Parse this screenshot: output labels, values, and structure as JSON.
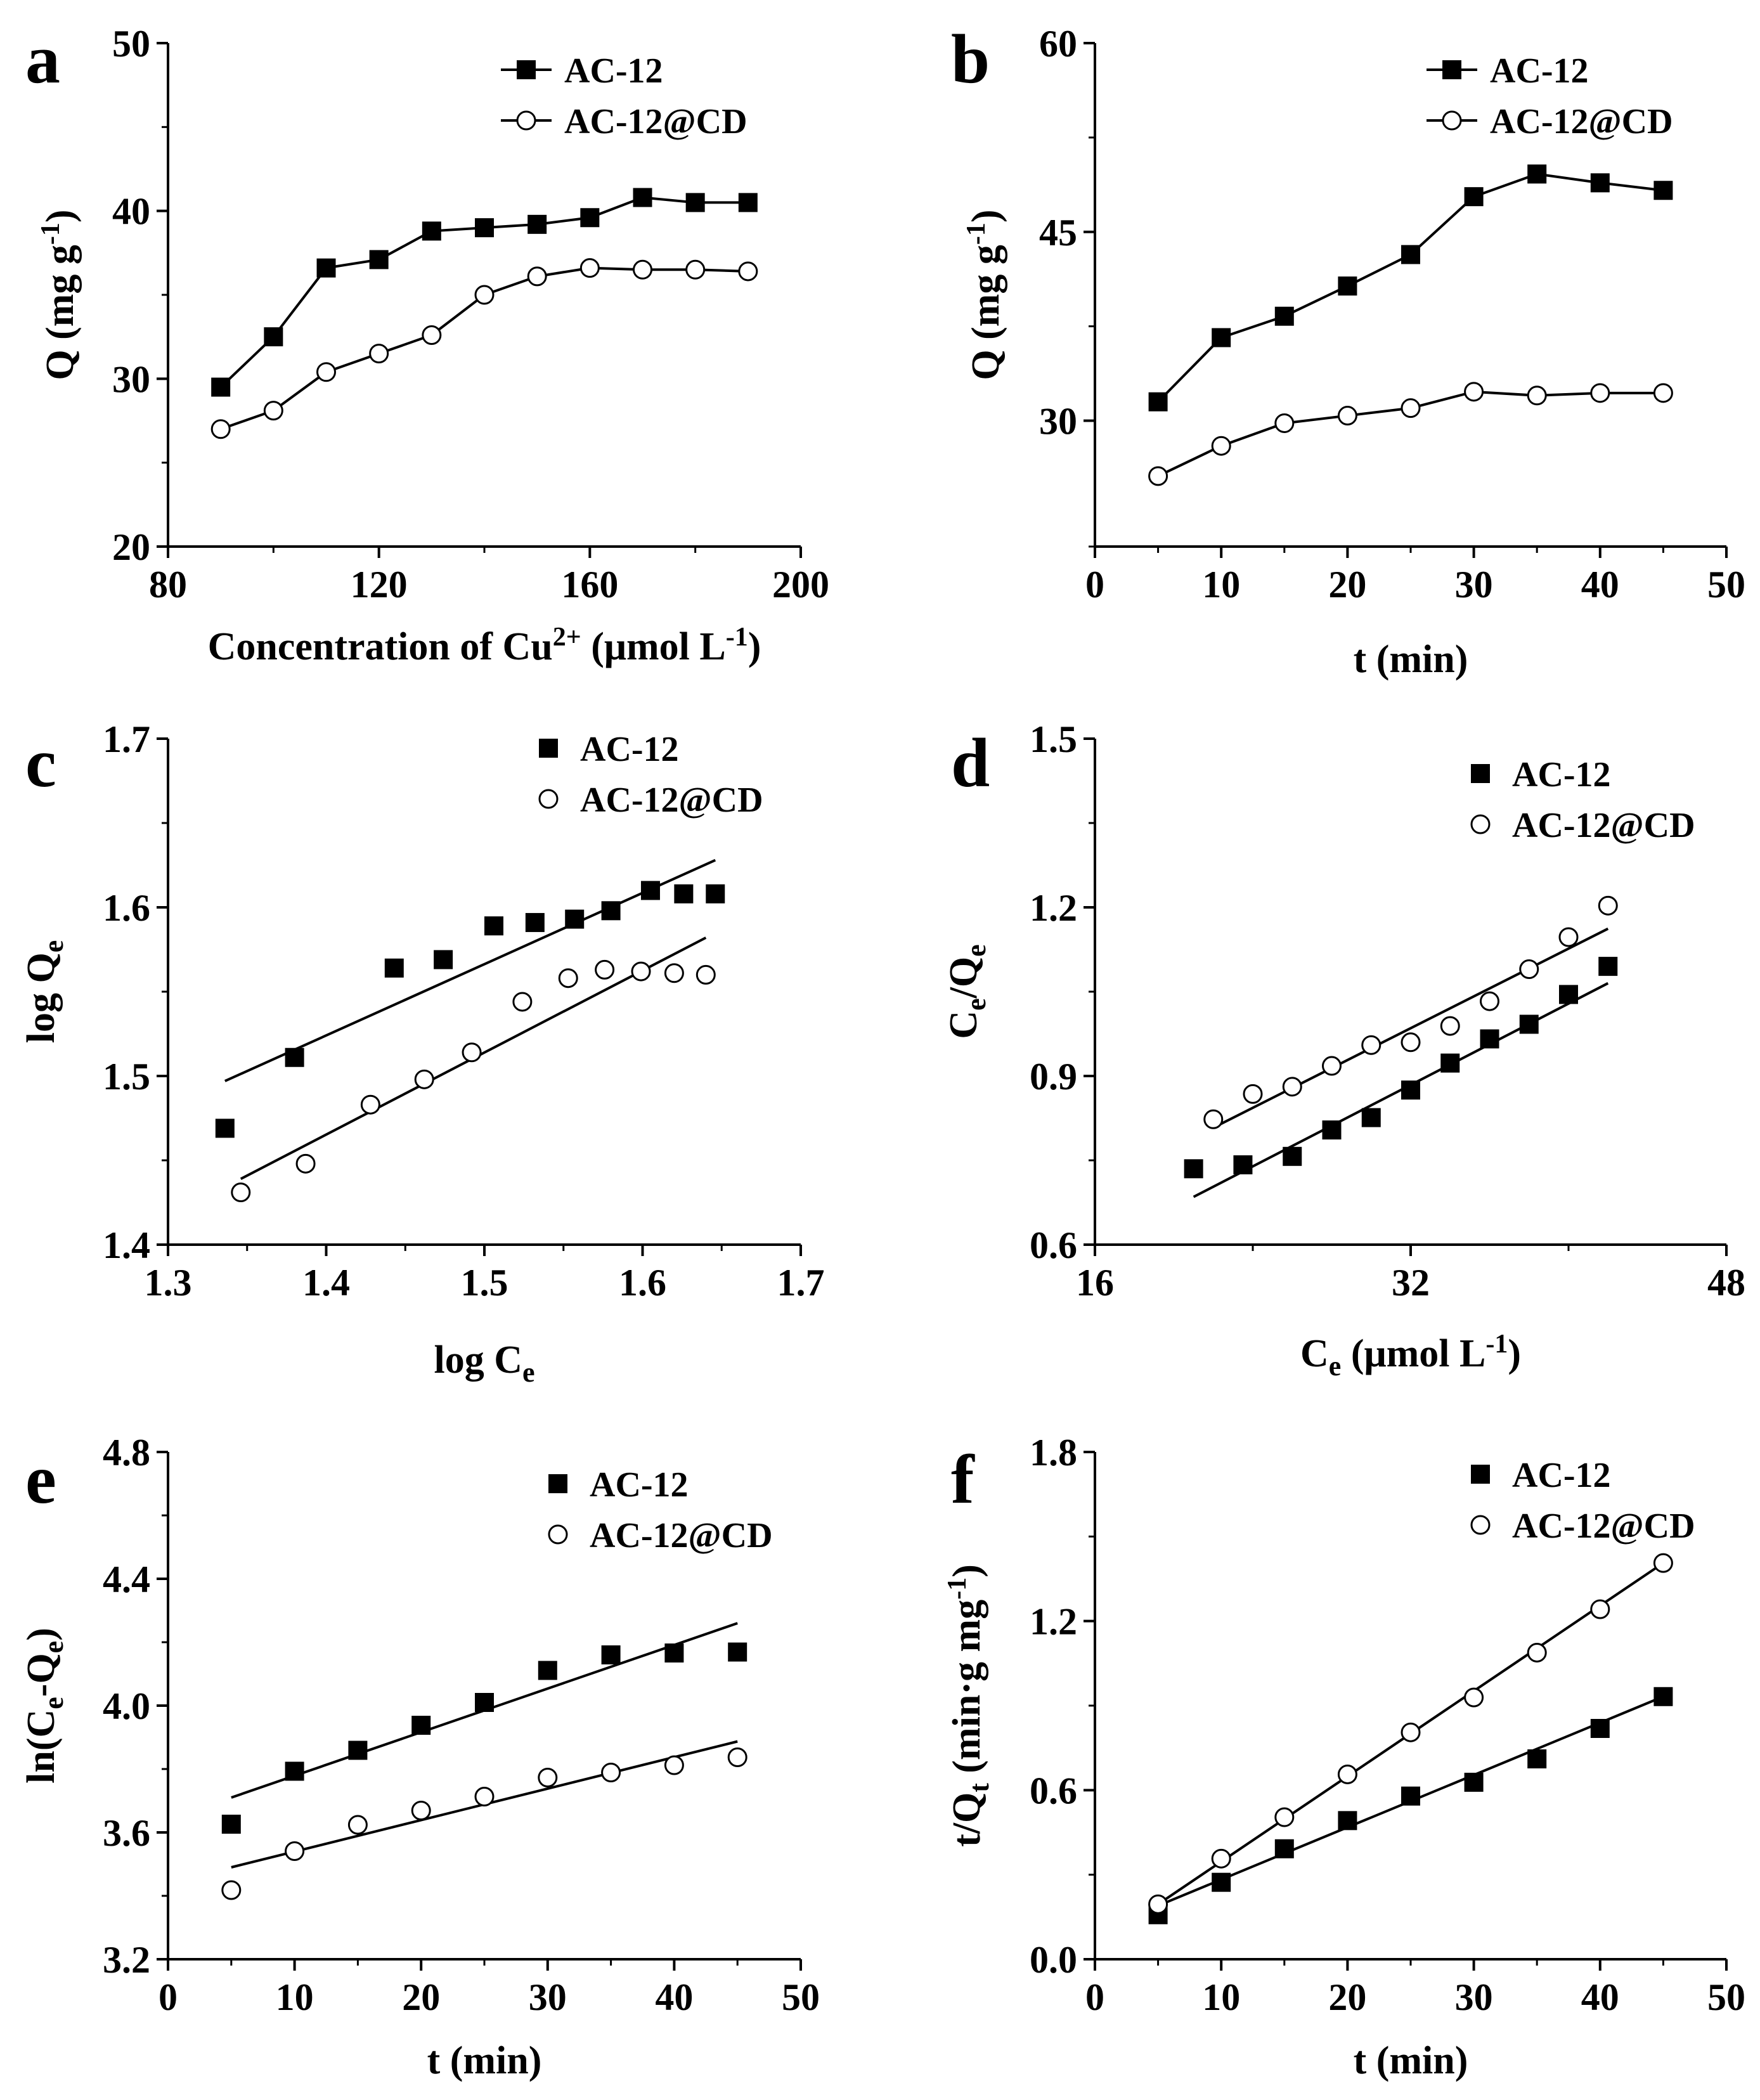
{
  "chart_data": [
    {
      "panel": "a",
      "type": "line",
      "xlabel": "Concentration of Cu2+ (μmol L-1)",
      "ylabel": "Q (mg g-1)",
      "xlim": [
        80,
        200
      ],
      "ylim": [
        20,
        50
      ],
      "xticks": [
        80,
        120,
        160,
        200
      ],
      "yticks": [
        20,
        30,
        40,
        50
      ],
      "legend_position": "top-right",
      "series": [
        {
          "name": "AC-12",
          "marker": "square",
          "x": [
            90,
            100,
            110,
            120,
            130,
            140,
            150,
            160,
            170,
            180,
            190
          ],
          "y": [
            29.5,
            32.5,
            36.6,
            37.1,
            38.8,
            39.0,
            39.2,
            39.6,
            40.8,
            40.5,
            40.5
          ]
        },
        {
          "name": "AC-12@CD",
          "marker": "circle",
          "x": [
            90,
            100,
            110,
            120,
            130,
            140,
            150,
            160,
            170,
            180,
            190
          ],
          "y": [
            27.0,
            28.1,
            30.4,
            31.5,
            32.6,
            35.0,
            36.1,
            36.6,
            36.5,
            36.5,
            36.4
          ]
        }
      ]
    },
    {
      "panel": "b",
      "type": "line",
      "xlabel": "t (min)",
      "ylabel": "Q (mg g-1)",
      "xlim": [
        0,
        50
      ],
      "ylim": [
        20,
        60
      ],
      "xticks": [
        0,
        10,
        20,
        30,
        40,
        50
      ],
      "yticks": [
        30,
        45,
        60
      ],
      "legend_position": "top-right",
      "series": [
        {
          "name": "AC-12",
          "marker": "square",
          "x": [
            5,
            10,
            15,
            20,
            25,
            30,
            35,
            40,
            45
          ],
          "y": [
            31.5,
            36.6,
            38.3,
            40.7,
            43.2,
            47.8,
            49.6,
            48.9,
            48.3
          ]
        },
        {
          "name": "AC-12@CD",
          "marker": "circle",
          "x": [
            5,
            10,
            15,
            20,
            25,
            30,
            35,
            40,
            45
          ],
          "y": [
            25.6,
            28.0,
            29.8,
            30.4,
            31.0,
            32.3,
            32.0,
            32.2,
            32.2
          ]
        }
      ]
    },
    {
      "panel": "c",
      "type": "scatter",
      "xlabel": "log Ce",
      "ylabel": "log Qe",
      "xlim": [
        1.3,
        1.7
      ],
      "ylim": [
        1.4,
        1.7
      ],
      "xticks": [
        1.3,
        1.4,
        1.5,
        1.6,
        1.7
      ],
      "yticks": [
        1.4,
        1.5,
        1.6,
        1.7
      ],
      "legend_position": "top-right",
      "series": [
        {
          "name": "AC-12",
          "marker": "square",
          "x": [
            1.336,
            1.38,
            1.443,
            1.474,
            1.506,
            1.532,
            1.557,
            1.58,
            1.605,
            1.626,
            1.646
          ],
          "y": [
            1.469,
            1.511,
            1.564,
            1.569,
            1.589,
            1.591,
            1.593,
            1.598,
            1.61,
            1.608,
            1.608
          ],
          "fit": [
            [
              1.336,
              1.497
            ],
            [
              1.646,
              1.628
            ]
          ]
        },
        {
          "name": "AC-12@CD",
          "marker": "circle",
          "x": [
            1.346,
            1.387,
            1.428,
            1.462,
            1.492,
            1.524,
            1.553,
            1.576,
            1.599,
            1.62,
            1.64
          ],
          "y": [
            1.431,
            1.448,
            1.483,
            1.498,
            1.514,
            1.544,
            1.558,
            1.563,
            1.562,
            1.561,
            1.56
          ],
          "fit": [
            [
              1.346,
              1.439
            ],
            [
              1.64,
              1.582
            ]
          ]
        }
      ]
    },
    {
      "panel": "d",
      "type": "scatter",
      "xlabel": "Ce (μmol L-1)",
      "ylabel": "Ce/Qe",
      "xlim": [
        16,
        48
      ],
      "ylim": [
        0.6,
        1.5
      ],
      "xticks": [
        16,
        32,
        48
      ],
      "yticks": [
        0.6,
        0.9,
        1.2,
        1.5
      ],
      "legend_position": "top-right",
      "series": [
        {
          "name": "AC-12",
          "marker": "square",
          "x": [
            21,
            23.5,
            26,
            28,
            30,
            32,
            34,
            36,
            38,
            40,
            42
          ],
          "y": [
            0.735,
            0.742,
            0.757,
            0.804,
            0.826,
            0.875,
            0.923,
            0.966,
            0.992,
            1.045,
            1.095
          ],
          "fit": [
            [
              21,
              0.685
            ],
            [
              42,
              1.065
            ]
          ]
        },
        {
          "name": "AC-12@CD",
          "marker": "circle",
          "x": [
            22,
            24,
            26,
            28,
            30,
            32,
            34,
            36,
            38,
            40,
            42
          ],
          "y": [
            0.823,
            0.868,
            0.881,
            0.918,
            0.955,
            0.96,
            0.989,
            1.033,
            1.09,
            1.147,
            1.203
          ],
          "fit": [
            [
              22,
              0.808
            ],
            [
              42,
              1.162
            ]
          ]
        }
      ]
    },
    {
      "panel": "e",
      "type": "scatter",
      "xlabel": "t (min)",
      "ylabel": "ln(Ce-Qe)",
      "xlim": [
        0,
        50
      ],
      "ylim": [
        3.2,
        4.8
      ],
      "xticks": [
        0,
        10,
        20,
        30,
        40,
        50
      ],
      "yticks": [
        3.2,
        3.6,
        4.0,
        4.4,
        4.8
      ],
      "legend_position": "top-right",
      "series": [
        {
          "name": "AC-12",
          "marker": "square",
          "x": [
            5,
            10,
            15,
            20,
            25,
            30,
            35,
            40,
            45
          ],
          "y": [
            3.626,
            3.793,
            3.859,
            3.938,
            4.01,
            4.111,
            4.16,
            4.166,
            4.169
          ],
          "fit": [
            [
              5,
              3.71
            ],
            [
              45,
              4.26
            ]
          ]
        },
        {
          "name": "AC-12@CD",
          "marker": "circle",
          "x": [
            5,
            10,
            15,
            20,
            25,
            30,
            35,
            40,
            45
          ],
          "y": [
            3.418,
            3.541,
            3.624,
            3.669,
            3.713,
            3.773,
            3.789,
            3.812,
            3.837
          ],
          "fit": [
            [
              5,
              3.49
            ],
            [
              45,
              3.887
            ]
          ]
        }
      ]
    },
    {
      "panel": "f",
      "type": "scatter",
      "xlabel": "t (min)",
      "ylabel": "t/Qt (min·g mg-1)",
      "xlim": [
        0,
        50
      ],
      "ylim": [
        0.0,
        1.8
      ],
      "xticks": [
        0,
        10,
        20,
        30,
        40,
        50
      ],
      "yticks": [
        0.0,
        0.6,
        1.2,
        1.8
      ],
      "legend_position": "top-right",
      "series": [
        {
          "name": "AC-12",
          "marker": "square",
          "x": [
            5,
            10,
            15,
            20,
            25,
            30,
            35,
            40,
            45
          ],
          "y": [
            0.158,
            0.273,
            0.392,
            0.492,
            0.579,
            0.628,
            0.711,
            0.819,
            0.932
          ],
          "fit": [
            [
              5,
              0.19
            ],
            [
              45,
              0.932
            ]
          ]
        },
        {
          "name": "AC-12@CD",
          "marker": "circle",
          "x": [
            5,
            10,
            15,
            20,
            25,
            30,
            35,
            40,
            45
          ],
          "y": [
            0.195,
            0.357,
            0.504,
            0.656,
            0.805,
            0.929,
            1.088,
            1.242,
            1.406
          ],
          "fit": [
            [
              5,
              0.195
            ],
            [
              45,
              1.406
            ]
          ]
        }
      ]
    }
  ]
}
